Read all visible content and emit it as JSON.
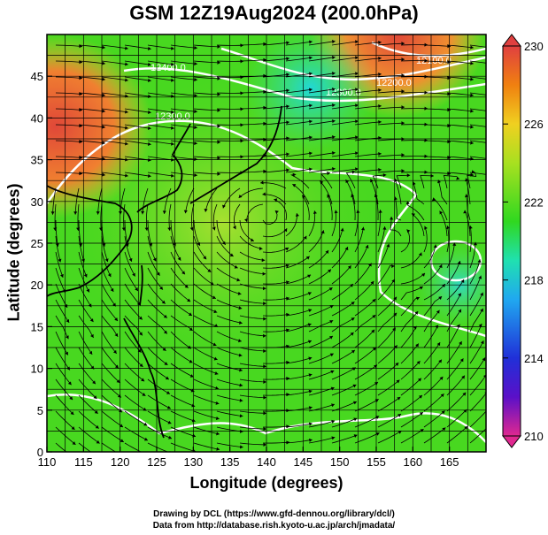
{
  "title": "GSM 12Z19Aug2024 (200.0hPa)",
  "x_axis": {
    "label": "Longitude (degrees)",
    "min": 110,
    "max": 170,
    "ticks": [
      "110",
      "115",
      "120",
      "125",
      "130",
      "135",
      "140",
      "145",
      "150",
      "155",
      "160",
      "165"
    ]
  },
  "y_axis": {
    "label": "Latitude (degrees)",
    "min": 0,
    "max": 50,
    "ticks": [
      "0",
      "5",
      "10",
      "15",
      "20",
      "25",
      "30",
      "35",
      "40",
      "45"
    ]
  },
  "colorbar": {
    "min": 210,
    "max": 230,
    "labels": [
      "230",
      "226",
      "222",
      "218",
      "214",
      "210"
    ],
    "colors": [
      "#e0308a",
      "#6a1fd0",
      "#1f2fd0",
      "#1fa0e8",
      "#20d8c0",
      "#20d020",
      "#58e020",
      "#c0e020",
      "#f0c020",
      "#f07010",
      "#e04040"
    ]
  },
  "contour_labels": [
    "12400.0",
    "12300.0",
    "12200.0",
    "12100.0",
    "12300.0"
  ],
  "field_colors": {
    "warm": "#e05040",
    "orange": "#f0a030",
    "yellow_green": "#b8e030",
    "green": "#40d820",
    "light_green": "#70e030",
    "cyan": "#30d0d0"
  },
  "credits": {
    "line1": "Drawing by DCL (https://www.gfd-dennou.org/library/dcl/)",
    "line2": "Data from http://database.rish.kyoto-u.ac.jp/arch/jmadata/"
  }
}
